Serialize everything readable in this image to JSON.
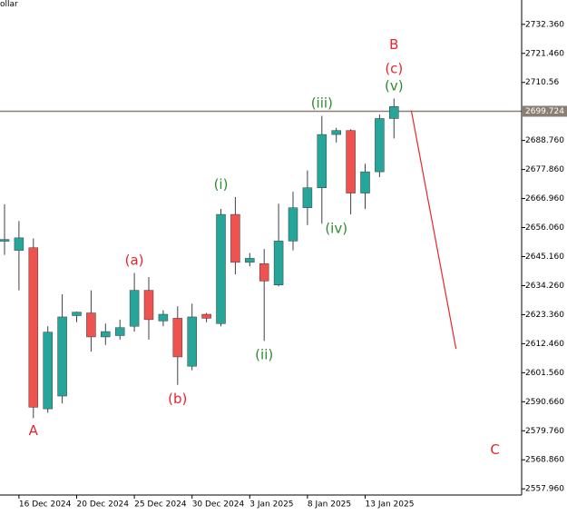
{
  "window": {
    "title_fragment": "ollar"
  },
  "current_price": {
    "value": 2699.724,
    "label": "2699.724"
  },
  "colors": {
    "bull": "#26a69a",
    "bear": "#ef5350",
    "wick": "#404040",
    "price_line": "#8a7f72",
    "red_label": "#e8262b",
    "green_label": "#2e8b2e",
    "projection": "#e8262b",
    "axis": "#000000",
    "price_box": "#8a7f72"
  },
  "chart_data": {
    "type": "candlestick",
    "ylim": [
      2549.5,
      2741.5
    ],
    "yticks": [
      2732.36,
      2721.46,
      2710.56,
      2688.76,
      2677.86,
      2666.96,
      2656.06,
      2645.16,
      2634.26,
      2623.36,
      2612.46,
      2601.56,
      2590.66,
      2579.76,
      2568.86,
      2557.96
    ],
    "ytick_labels": [
      "2732.360",
      "2721.460",
      "2710.56",
      "2688.760",
      "2677.860",
      "2666.960",
      "2656.060",
      "2645.160",
      "2634.260",
      "2623.360",
      "2612.460",
      "2601.560",
      "2590.660",
      "2579.760",
      "2568.860",
      "2557.960"
    ],
    "xtick_labels": [
      {
        "index": 1,
        "label": "16 Dec 2024"
      },
      {
        "index": 5,
        "label": "20 Dec 2024"
      },
      {
        "index": 9,
        "label": "25 Dec 2024"
      },
      {
        "index": 13,
        "label": "30 Dec 2024"
      },
      {
        "index": 17,
        "label": "3 Jan 2025"
      },
      {
        "index": 21,
        "label": "8 Jan 2025"
      },
      {
        "index": 25,
        "label": "13 Jan 2025"
      }
    ],
    "candles": [
      {
        "o": 2651.6,
        "h": 2664.8,
        "l": 2645.8,
        "c": 2651.6
      },
      {
        "o": 2647.5,
        "h": 2658.5,
        "l": 2632.5,
        "c": 2652.2
      },
      {
        "o": 2648.5,
        "h": 2652.0,
        "l": 2584.5,
        "c": 2588.6
      },
      {
        "o": 2588.0,
        "h": 2619.0,
        "l": 2586.5,
        "c": 2616.8
      },
      {
        "o": 2592.8,
        "h": 2631.0,
        "l": 2590.0,
        "c": 2622.5
      },
      {
        "o": 2623.0,
        "h": 2624.5,
        "l": 2620.5,
        "c": 2624.3
      },
      {
        "o": 2624.0,
        "h": 2632.5,
        "l": 2609.5,
        "c": 2615.0
      },
      {
        "o": 2615.0,
        "h": 2620.0,
        "l": 2612.0,
        "c": 2617.0
      },
      {
        "o": 2615.5,
        "h": 2621.5,
        "l": 2614.0,
        "c": 2618.5
      },
      {
        "o": 2619.0,
        "h": 2639.0,
        "l": 2617.0,
        "c": 2632.5
      },
      {
        "o": 2632.5,
        "h": 2637.5,
        "l": 2614.0,
        "c": 2621.5
      },
      {
        "o": 2621.0,
        "h": 2625.0,
        "l": 2619.0,
        "c": 2623.5
      },
      {
        "o": 2622.0,
        "h": 2626.5,
        "l": 2597.0,
        "c": 2607.5
      },
      {
        "o": 2604.0,
        "h": 2627.5,
        "l": 2602.5,
        "c": 2622.5
      },
      {
        "o": 2623.5,
        "h": 2624.0,
        "l": 2620.5,
        "c": 2622.0
      },
      {
        "o": 2620.0,
        "h": 2663.0,
        "l": 2619.0,
        "c": 2661.0
      },
      {
        "o": 2661.0,
        "h": 2667.5,
        "l": 2638.5,
        "c": 2643.0
      },
      {
        "o": 2643.0,
        "h": 2646.5,
        "l": 2641.5,
        "c": 2644.5
      },
      {
        "o": 2642.5,
        "h": 2648.0,
        "l": 2613.5,
        "c": 2636.0
      },
      {
        "o": 2634.5,
        "h": 2665.0,
        "l": 2634.0,
        "c": 2651.0
      },
      {
        "o": 2651.0,
        "h": 2669.5,
        "l": 2647.5,
        "c": 2663.5
      },
      {
        "o": 2663.5,
        "h": 2677.5,
        "l": 2657.0,
        "c": 2671.0
      },
      {
        "o": 2671.0,
        "h": 2698.0,
        "l": 2657.5,
        "c": 2691.0
      },
      {
        "o": 2691.0,
        "h": 2693.5,
        "l": 2688.0,
        "c": 2692.5
      },
      {
        "o": 2692.5,
        "h": 2693.0,
        "l": 2661.0,
        "c": 2669.0
      },
      {
        "o": 2669.0,
        "h": 2680.0,
        "l": 2663.0,
        "c": 2677.0
      },
      {
        "o": 2677.0,
        "h": 2698.5,
        "l": 2675.0,
        "c": 2697.0
      },
      {
        "o": 2697.0,
        "h": 2704.5,
        "l": 2689.5,
        "c": 2701.5
      }
    ],
    "wave_labels": [
      {
        "text": "A",
        "index": 2,
        "price": 2585.0,
        "color": "red",
        "side": "below"
      },
      {
        "text": "(a)",
        "index": 9,
        "price": 2639.0,
        "color": "red",
        "side": "above"
      },
      {
        "text": "(b)",
        "index": 12,
        "price": 2597.0,
        "color": "red",
        "side": "below"
      },
      {
        "text": "(i)",
        "index": 15,
        "price": 2667.5,
        "color": "green",
        "side": "above"
      },
      {
        "text": "(ii)",
        "index": 18,
        "price": 2613.5,
        "color": "green",
        "side": "below"
      },
      {
        "text": "(iii)",
        "index": 22,
        "price": 2698.0,
        "color": "green",
        "side": "above"
      },
      {
        "text": "(iv)",
        "index": 23,
        "price": 2661.0,
        "color": "green",
        "side": "below"
      },
      {
        "text": "(v)",
        "index": 27,
        "price": 2704.5,
        "color": "green",
        "side": "above"
      },
      {
        "text": "(c)",
        "index": 27,
        "price": 2711.0,
        "color": "red",
        "side": "above"
      },
      {
        "text": "B",
        "index": 27,
        "price": 2720.0,
        "color": "red",
        "side": "above"
      },
      {
        "text": "C",
        "index": 34,
        "price": 2572.5,
        "color": "red",
        "side": "at"
      }
    ],
    "projection": {
      "from": {
        "index": 28.2,
        "price": 2700.0
      },
      "to": {
        "index": 31.3,
        "price": 2610.5
      }
    }
  }
}
